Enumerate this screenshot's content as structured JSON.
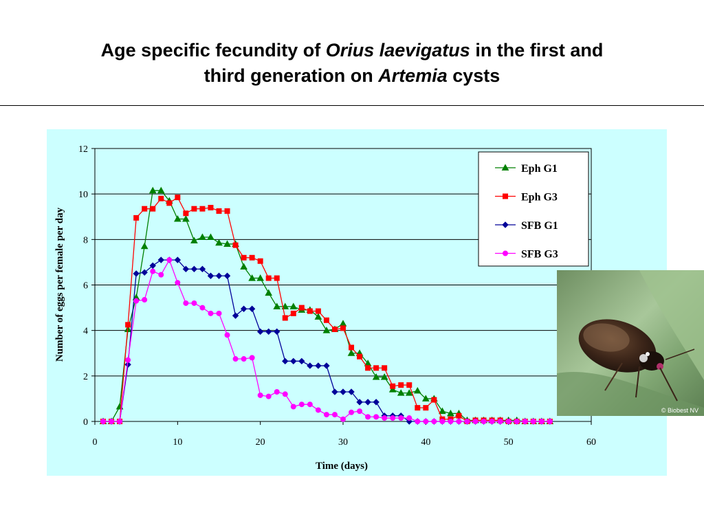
{
  "slide": {
    "title_line1_a": "Age specific fecundity of ",
    "title_line1_b": "Orius laevigatus",
    "title_line1_c": " in the first and",
    "title_line2_a": "third generation on ",
    "title_line2_b": "Artemia",
    "title_line2_c": " cysts"
  },
  "photo": {
    "credit": "© Biobest NV"
  },
  "colors": {
    "plot_background": "#ccffff",
    "series_eph_g1": "#008000",
    "series_eph_g3": "#ff0000",
    "series_sfb_g1": "#000099",
    "series_sfb_g3": "#ff00ff"
  },
  "chart_data": {
    "type": "line",
    "xlabel": "Time (days)",
    "ylabel": "Number of eggs per female per day",
    "xlim": [
      0,
      60
    ],
    "ylim": [
      0,
      12
    ],
    "xticks": [
      0,
      10,
      20,
      30,
      40,
      50,
      60
    ],
    "yticks": [
      0,
      2,
      4,
      6,
      8,
      10,
      12
    ],
    "grid": "horizontal",
    "legend": "top-right",
    "x": [
      1,
      2,
      3,
      4,
      5,
      6,
      7,
      8,
      9,
      10,
      11,
      12,
      13,
      14,
      15,
      16,
      17,
      18,
      19,
      20,
      21,
      22,
      23,
      24,
      25,
      26,
      27,
      28,
      29,
      30,
      31,
      32,
      33,
      34,
      35,
      36,
      37,
      38,
      39,
      40,
      41,
      42,
      43,
      44,
      45,
      46,
      47,
      48,
      49,
      50,
      51,
      52,
      53,
      54,
      55
    ],
    "series": [
      {
        "name": "Eph G1",
        "marker": "triangle",
        "values": [
          0,
          0,
          0.65,
          4.05,
          5.45,
          7.7,
          10.15,
          10.15,
          9.7,
          8.9,
          8.9,
          7.95,
          8.1,
          8.1,
          7.85,
          7.8,
          7.8,
          6.8,
          6.3,
          6.3,
          5.65,
          5.05,
          5.05,
          5.05,
          4.9,
          4.9,
          4.6,
          4.0,
          4.05,
          4.3,
          3.0,
          3.0,
          2.55,
          1.95,
          1.95,
          1.4,
          1.25,
          1.25,
          1.35,
          1.0,
          1.0,
          0.45,
          0.35,
          0.35,
          0.05,
          0.05,
          0.05,
          0.05,
          0.05,
          0.05,
          0.05,
          0,
          0,
          0,
          0
        ]
      },
      {
        "name": "Eph G3",
        "marker": "square",
        "values": [
          0,
          0,
          0,
          4.25,
          8.95,
          9.35,
          9.35,
          9.8,
          9.6,
          9.85,
          9.15,
          9.35,
          9.35,
          9.4,
          9.25,
          9.25,
          7.75,
          7.2,
          7.2,
          7.05,
          6.3,
          6.3,
          4.55,
          4.75,
          5.0,
          4.85,
          4.85,
          4.45,
          4.05,
          4.1,
          3.25,
          2.85,
          2.35,
          2.35,
          2.35,
          1.55,
          1.6,
          1.6,
          0.6,
          0.6,
          0.95,
          0.1,
          0.1,
          0.25,
          0,
          0.05,
          0.05,
          0.05,
          0.05,
          0,
          0,
          0,
          0,
          0,
          0
        ]
      },
      {
        "name": "SFB G1",
        "marker": "diamond",
        "values": [
          0,
          0,
          0,
          2.5,
          6.5,
          6.55,
          6.85,
          7.1,
          7.1,
          7.1,
          6.7,
          6.7,
          6.7,
          6.4,
          6.4,
          6.4,
          4.65,
          4.95,
          4.95,
          3.95,
          3.95,
          3.95,
          2.65,
          2.65,
          2.65,
          2.45,
          2.45,
          2.45,
          1.3,
          1.3,
          1.3,
          0.85,
          0.85,
          0.85,
          0.25,
          0.25,
          0.25,
          0,
          0,
          0,
          0,
          0,
          0,
          0,
          0,
          0,
          0,
          0,
          0,
          0,
          0,
          0,
          0,
          0,
          0
        ]
      },
      {
        "name": "SFB G3",
        "marker": "circle",
        "values": [
          0,
          0,
          0,
          2.7,
          5.3,
          5.35,
          6.6,
          6.45,
          7.1,
          6.1,
          5.2,
          5.2,
          5.0,
          4.75,
          4.75,
          3.8,
          2.75,
          2.75,
          2.8,
          1.15,
          1.1,
          1.3,
          1.2,
          0.65,
          0.75,
          0.75,
          0.5,
          0.3,
          0.3,
          0.1,
          0.4,
          0.45,
          0.2,
          0.2,
          0.15,
          0.15,
          0.15,
          0.15,
          0,
          0,
          0,
          0,
          0,
          0,
          0,
          0,
          0,
          0,
          0,
          0,
          0,
          0,
          0,
          0,
          0
        ]
      }
    ]
  }
}
